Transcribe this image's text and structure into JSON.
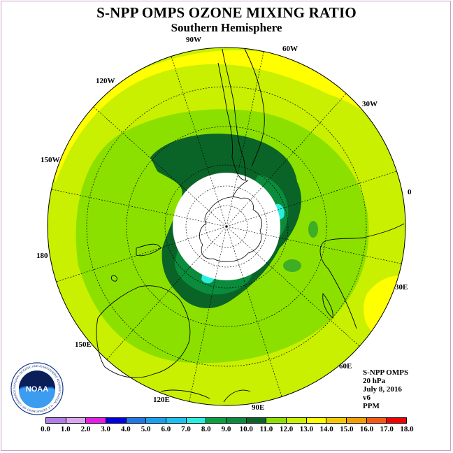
{
  "title": "S-NPP OMPS OZONE MIXING RATIO",
  "subtitle": "Southern Hemisphere",
  "longitude_labels": [
    "0",
    "30W",
    "60W",
    "90W",
    "120W",
    "150W",
    "180",
    "150E",
    "120E",
    "90E",
    "60E",
    "30E"
  ],
  "info": {
    "instrument": "S-NPP OMPS",
    "level": "20 hPa",
    "date": "July 8, 2016",
    "version": "v6",
    "units": "PPM"
  },
  "logo": {
    "text": "NOAA",
    "ring_text": "NATIONAL OCEANIC AND ATMOSPHERIC ADMINISTRATION · U.S. DEPARTMENT OF COMMERCE"
  },
  "colorbar": {
    "ticks": [
      "0.0",
      "1.0",
      "2.0",
      "3.0",
      "4.0",
      "5.0",
      "6.0",
      "7.0",
      "8.0",
      "9.0",
      "10.0",
      "11.0",
      "12.0",
      "13.0",
      "14.0",
      "15.0",
      "16.0",
      "17.0",
      "18.0"
    ],
    "colors": [
      "#b07ce8",
      "#dba6f0",
      "#e61ce6",
      "#0000e0",
      "#1e78e6",
      "#18a0ee",
      "#1cc0f0",
      "#28ece0",
      "#0aa040",
      "#0a8c3c",
      "#0a6428",
      "#8ce000",
      "#c8f000",
      "#ffff00",
      "#f4c800",
      "#f49c00",
      "#f45a14",
      "#f00000",
      "#8c5028"
    ]
  }
}
